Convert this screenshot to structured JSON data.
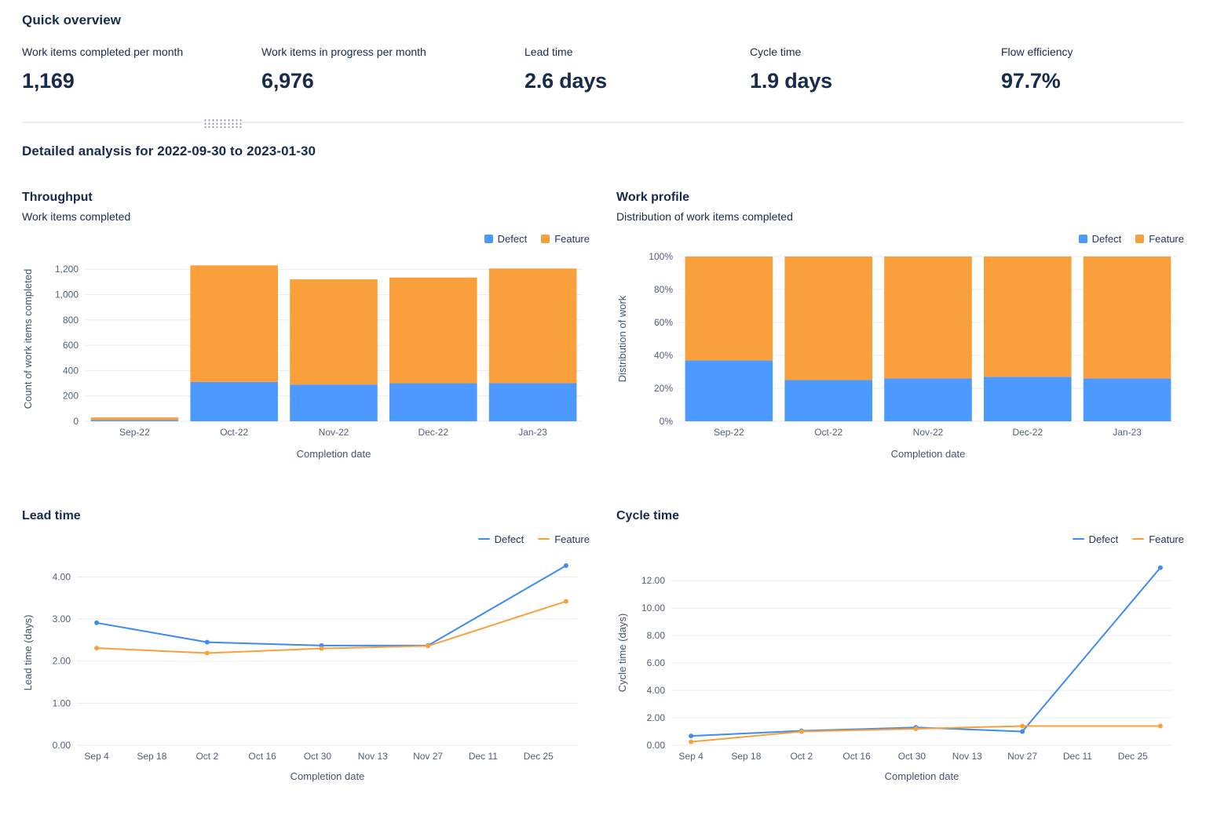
{
  "quick_overview": {
    "title": "Quick overview",
    "kpis": [
      {
        "label": "Work items completed per month",
        "value": "1,169"
      },
      {
        "label": "Work items in progress per month",
        "value": "6,976"
      },
      {
        "label": "Lead time",
        "value": "2.6 days"
      },
      {
        "label": "Cycle time",
        "value": "1.9 days"
      },
      {
        "label": "Flow efficiency",
        "value": "97.7%"
      }
    ]
  },
  "detailed_analysis": {
    "title": "Detailed analysis for 2022-09-30 to 2023-01-30"
  },
  "colors": {
    "defect": "#4C9AFF",
    "feature": "#F9A03C",
    "grid": "#EBECF0"
  },
  "chart_data": [
    {
      "id": "throughput",
      "type": "stacked-bar",
      "title": "Throughput",
      "subtitle": "Work items completed",
      "xlabel": "Completion date",
      "ylabel": "Count of work items completed",
      "legend_position": "top-right",
      "grid": true,
      "categories": [
        "Sep-22",
        "Oct-22",
        "Nov-22",
        "Dec-22",
        "Jan-23"
      ],
      "series": [
        {
          "name": "Defect",
          "color": "#4C9AFF",
          "values": [
            10,
            310,
            290,
            300,
            300
          ]
        },
        {
          "name": "Feature",
          "color": "#F9A03C",
          "values": [
            20,
            920,
            830,
            835,
            905
          ]
        }
      ],
      "ylim": [
        0,
        1300
      ],
      "yticks": [
        0,
        200,
        400,
        600,
        800,
        1000,
        1200
      ],
      "ytick_labels": [
        "0",
        "200",
        "400",
        "600",
        "800",
        "1,000",
        "1,200"
      ]
    },
    {
      "id": "work-profile",
      "type": "stacked-bar",
      "title": "Work profile",
      "subtitle": "Distribution of work items completed",
      "xlabel": "Completion date",
      "ylabel": "Distribution of work",
      "legend_position": "top-right",
      "grid": true,
      "categories": [
        "Sep-22",
        "Oct-22",
        "Nov-22",
        "Dec-22",
        "Jan-23"
      ],
      "series": [
        {
          "name": "Defect",
          "color": "#4C9AFF",
          "values": [
            37,
            25,
            26,
            27,
            26
          ]
        },
        {
          "name": "Feature",
          "color": "#F9A03C",
          "values": [
            63,
            75,
            74,
            73,
            74
          ]
        }
      ],
      "ylim": [
        0,
        100
      ],
      "yticks": [
        0,
        20,
        40,
        60,
        80,
        100
      ],
      "ytick_labels": [
        "0%",
        "20%",
        "40%",
        "60%",
        "80%",
        "100%"
      ]
    },
    {
      "id": "lead-time",
      "type": "line",
      "title": "Lead time",
      "subtitle": "",
      "xlabel": "Completion date",
      "ylabel": "Lead time (days)",
      "legend_position": "top-right",
      "grid": true,
      "x_days": [
        0,
        28,
        57,
        84,
        119
      ],
      "xtick_days": [
        0,
        14,
        28,
        42,
        56,
        70,
        84,
        98,
        112
      ],
      "xtick_labels": [
        "Sep 4",
        "Sep 18",
        "Oct 2",
        "Oct 16",
        "Oct 30",
        "Nov 13",
        "Nov 27",
        "Dec 11",
        "Dec 25"
      ],
      "xlim": [
        -5,
        122
      ],
      "series": [
        {
          "name": "Defect",
          "color": "#3E8BF2",
          "values": [
            2.91,
            2.45,
            2.37,
            2.37,
            4.27
          ]
        },
        {
          "name": "Feature",
          "color": "#F9A03C",
          "values": [
            2.31,
            2.19,
            2.3,
            2.36,
            3.42
          ]
        }
      ],
      "ylim": [
        0,
        4.4
      ],
      "yticks": [
        0,
        1,
        2,
        3,
        4
      ],
      "ytick_labels": [
        "0.00",
        "1.00",
        "2.00",
        "3.00",
        "4.00"
      ]
    },
    {
      "id": "cycle-time",
      "type": "line",
      "title": "Cycle time",
      "subtitle": "",
      "xlabel": "Completion date",
      "ylabel": "Cycle time (days)",
      "legend_position": "top-right",
      "grid": true,
      "x_days": [
        0,
        28,
        57,
        84,
        119
      ],
      "xtick_days": [
        0,
        14,
        28,
        42,
        56,
        70,
        84,
        98,
        112
      ],
      "xtick_labels": [
        "Sep 4",
        "Sep 18",
        "Oct 2",
        "Oct 16",
        "Oct 30",
        "Nov 13",
        "Nov 27",
        "Dec 11",
        "Dec 25"
      ],
      "xlim": [
        -5,
        122
      ],
      "series": [
        {
          "name": "Defect",
          "color": "#3E8BF2",
          "values": [
            0.68,
            1.05,
            1.3,
            1.0,
            12.95
          ]
        },
        {
          "name": "Feature",
          "color": "#F9A03C",
          "values": [
            0.25,
            1.0,
            1.2,
            1.4,
            1.4
          ]
        }
      ],
      "ylim": [
        0,
        13.5
      ],
      "yticks": [
        0,
        2,
        4,
        6,
        8,
        10,
        12
      ],
      "ytick_labels": [
        "0.00",
        "2.00",
        "4.00",
        "6.00",
        "8.00",
        "10.00",
        "12.00"
      ]
    }
  ]
}
